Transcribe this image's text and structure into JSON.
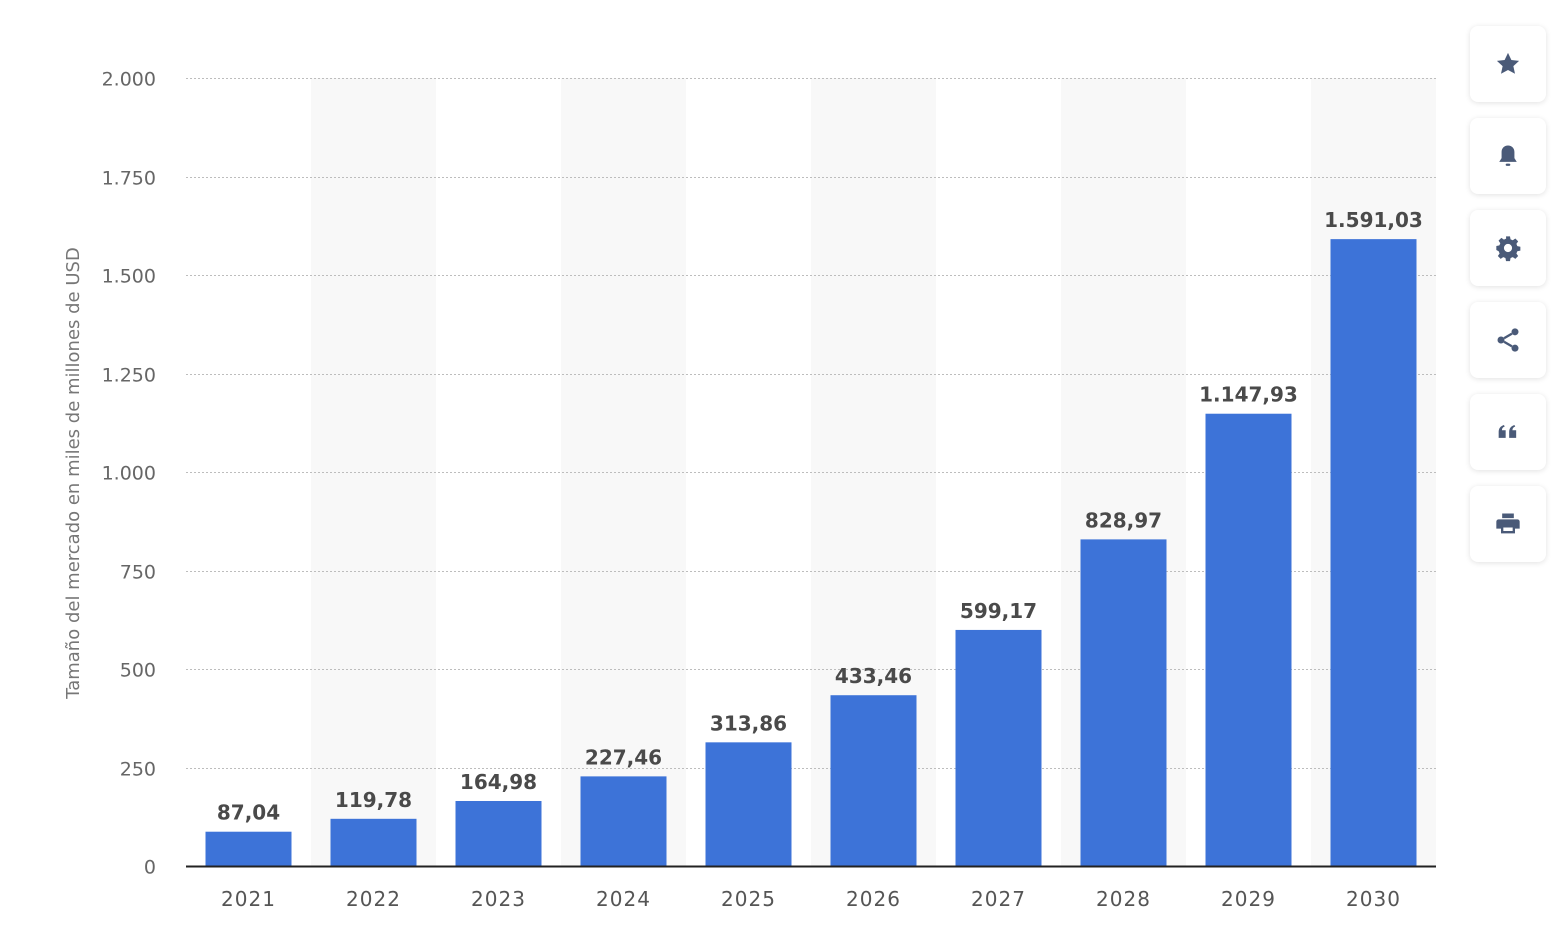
{
  "chart_data": {
    "type": "bar",
    "categories": [
      "2021",
      "2022",
      "2023",
      "2024",
      "2025",
      "2026",
      "2027",
      "2028",
      "2029",
      "2030"
    ],
    "values": [
      87.04,
      119.78,
      164.98,
      227.46,
      313.86,
      433.46,
      599.17,
      828.97,
      1147.93,
      1591.03
    ],
    "value_labels": [
      "87,04",
      "119,78",
      "164,98",
      "227,46",
      "313,86",
      "433,46",
      "599,17",
      "828,97",
      "1.147,93",
      "1.591,03"
    ],
    "yticks": [
      0,
      250,
      500,
      750,
      1000,
      1250,
      1500,
      1750,
      2000
    ],
    "ytick_labels": [
      "0",
      "250",
      "500",
      "750",
      "1.000",
      "1.250",
      "1.500",
      "1.750",
      "2.000"
    ],
    "ylim": [
      0,
      2000
    ],
    "title": "",
    "xlabel": "",
    "ylabel": "Tamaño del mercado en miles de millones de USD",
    "grid": "horizontal dotted",
    "bar_color": "#3d73d8",
    "alternate_band_color": "#f8f8f8"
  },
  "toolbar": {
    "buttons": [
      {
        "name": "favorite",
        "icon": "star-icon"
      },
      {
        "name": "notification",
        "icon": "bell-icon"
      },
      {
        "name": "settings",
        "icon": "gear-icon"
      },
      {
        "name": "share",
        "icon": "share-icon"
      },
      {
        "name": "cite",
        "icon": "quote-icon"
      },
      {
        "name": "print",
        "icon": "printer-icon"
      }
    ],
    "icon_color": "#4a5a78"
  }
}
